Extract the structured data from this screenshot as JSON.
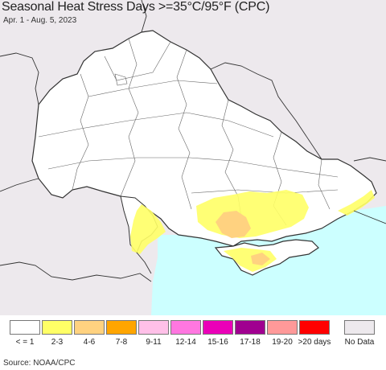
{
  "header": {
    "title": "Seasonal Heat Stress Days >=35°C/95°F (CPC)",
    "subtitle": "Apr. 1 - Aug. 5, 2023"
  },
  "map": {
    "land_color": "#ffffff",
    "outside_color": "#ede9ed",
    "sea_color": "#ccffff",
    "border_color": "#333333"
  },
  "legend": {
    "items": [
      {
        "label": "< = 1",
        "color": "#ffffff"
      },
      {
        "label": "2-3",
        "color": "#ffff66"
      },
      {
        "label": "4-6",
        "color": "#ffd280"
      },
      {
        "label": "7-8",
        "color": "#ffa500"
      },
      {
        "label": "9-11",
        "color": "#ffc0e8"
      },
      {
        "label": "12-14",
        "color": "#ff77e0"
      },
      {
        "label": "15-16",
        "color": "#ea00b8"
      },
      {
        "label": "17-18",
        "color": "#a00090"
      },
      {
        "label": "19-20",
        "color": "#ff9999"
      },
      {
        "label": ">20 days",
        "color": "#ff0000"
      }
    ],
    "no_data": {
      "label": "No Data",
      "color": "#ede9ed"
    }
  },
  "footer": {
    "source": "Source: NOAA/CPC"
  }
}
